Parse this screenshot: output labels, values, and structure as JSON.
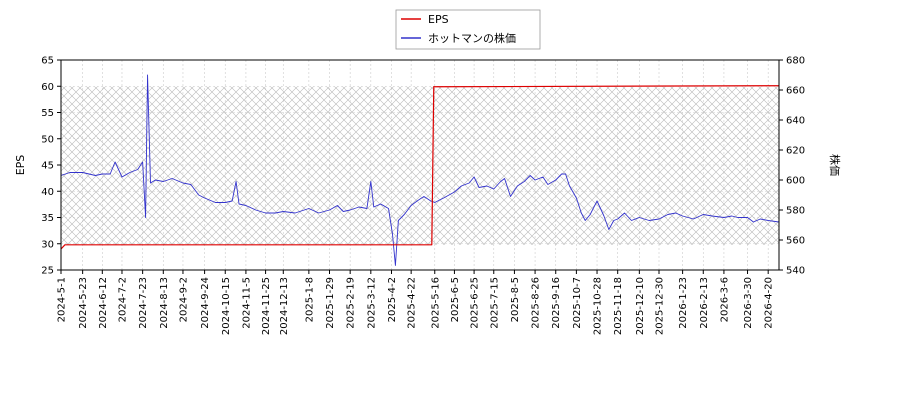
{
  "chart_data": {
    "type": "line",
    "title": "",
    "legend": {
      "position": "top-center",
      "entries": [
        {
          "name": "EPS",
          "color": "#dd0000"
        },
        {
          "name": "ホットマンの株価",
          "color": "#3333cc"
        }
      ]
    },
    "left_axis": {
      "label": "EPS",
      "ylim": [
        25,
        65
      ],
      "ticks": [
        "25",
        "30",
        "35",
        "40",
        "45",
        "50",
        "55",
        "60",
        "65"
      ]
    },
    "right_axis": {
      "label": "株価",
      "ylim": [
        540,
        680
      ],
      "ticks": [
        "540",
        "560",
        "580",
        "600",
        "620",
        "640",
        "660",
        "680"
      ]
    },
    "x_axis": {
      "xlim": [
        "2024-05-01",
        "2026-05-01"
      ],
      "tick_labels": [
        "2024-5-1",
        "2024-5-23",
        "2024-6-12",
        "2024-7-2",
        "2024-7-23",
        "2024-8-13",
        "2024-9-2",
        "2024-9-24",
        "2024-10-15",
        "2024-11-5",
        "2024-11-25",
        "2024-12-13",
        "2025-1-8",
        "2025-1-29",
        "2025-2-19",
        "2025-3-12",
        "2025-4-2",
        "2025-4-22",
        "2025-5-16",
        "2025-6-5",
        "2025-6-25",
        "2025-7-15",
        "2025-8-5",
        "2025-8-26",
        "2025-9-16",
        "2025-10-7",
        "2025-10-28",
        "2025-11-18",
        "2025-12-10",
        "2025-12-30",
        "2026-1-23",
        "2026-2-13",
        "2026-3-6",
        "2026-3-30",
        "2026-4-20"
      ]
    },
    "hatch_region": {
      "x": [
        "2024-05-01",
        "2026-05-01"
      ],
      "y": [
        29.8,
        59.9
      ]
    },
    "series": [
      {
        "name": "EPS",
        "axis": "left",
        "color": "#dd0000",
        "points": [
          [
            "2024-05-01",
            29.0
          ],
          [
            "2024-05-05",
            29.8
          ],
          [
            "2025-05-13",
            29.8
          ],
          [
            "2025-05-15",
            59.9
          ],
          [
            "2026-05-01",
            60.1
          ]
        ]
      },
      {
        "name": "ホットマンの株価",
        "axis": "right",
        "color": "#3333cc",
        "points": [
          [
            "2024-05-01",
            603
          ],
          [
            "2024-05-10",
            605
          ],
          [
            "2024-05-23",
            605
          ],
          [
            "2024-06-05",
            603
          ],
          [
            "2024-06-12",
            604
          ],
          [
            "2024-06-20",
            604
          ],
          [
            "2024-06-25",
            612
          ],
          [
            "2024-07-02",
            602
          ],
          [
            "2024-07-10",
            605
          ],
          [
            "2024-07-18",
            607
          ],
          [
            "2024-07-23",
            612
          ],
          [
            "2024-07-26",
            575
          ],
          [
            "2024-07-28",
            670
          ],
          [
            "2024-07-31",
            598
          ],
          [
            "2024-08-05",
            600
          ],
          [
            "2024-08-13",
            599
          ],
          [
            "2024-08-22",
            601
          ],
          [
            "2024-09-02",
            598
          ],
          [
            "2024-09-10",
            597
          ],
          [
            "2024-09-18",
            590
          ],
          [
            "2024-09-24",
            588
          ],
          [
            "2024-10-05",
            585
          ],
          [
            "2024-10-15",
            585
          ],
          [
            "2024-10-22",
            586
          ],
          [
            "2024-10-26",
            599
          ],
          [
            "2024-10-29",
            584
          ],
          [
            "2024-11-05",
            583
          ],
          [
            "2024-11-15",
            580
          ],
          [
            "2024-11-25",
            578
          ],
          [
            "2024-12-05",
            578
          ],
          [
            "2024-12-13",
            579
          ],
          [
            "2024-12-25",
            578
          ],
          [
            "2025-01-08",
            581
          ],
          [
            "2025-01-18",
            578
          ],
          [
            "2025-01-29",
            580
          ],
          [
            "2025-02-06",
            583
          ],
          [
            "2025-02-12",
            579
          ],
          [
            "2025-02-19",
            580
          ],
          [
            "2025-02-28",
            582
          ],
          [
            "2025-03-08",
            581
          ],
          [
            "2025-03-12",
            599
          ],
          [
            "2025-03-15",
            582
          ],
          [
            "2025-03-22",
            584
          ],
          [
            "2025-03-30",
            581
          ],
          [
            "2025-04-03",
            564
          ],
          [
            "2025-04-06",
            543
          ],
          [
            "2025-04-09",
            573
          ],
          [
            "2025-04-15",
            577
          ],
          [
            "2025-04-22",
            583
          ],
          [
            "2025-04-28",
            586
          ],
          [
            "2025-05-05",
            589
          ],
          [
            "2025-05-12",
            586
          ],
          [
            "2025-05-16",
            585
          ],
          [
            "2025-05-25",
            588
          ],
          [
            "2025-06-05",
            592
          ],
          [
            "2025-06-12",
            596
          ],
          [
            "2025-06-20",
            598
          ],
          [
            "2025-06-25",
            602
          ],
          [
            "2025-06-30",
            595
          ],
          [
            "2025-07-08",
            596
          ],
          [
            "2025-07-15",
            594
          ],
          [
            "2025-07-22",
            599
          ],
          [
            "2025-07-26",
            601
          ],
          [
            "2025-08-01",
            589
          ],
          [
            "2025-08-08",
            596
          ],
          [
            "2025-08-15",
            599
          ],
          [
            "2025-08-21",
            603
          ],
          [
            "2025-08-26",
            600
          ],
          [
            "2025-09-03",
            602
          ],
          [
            "2025-09-08",
            597
          ],
          [
            "2025-09-16",
            600
          ],
          [
            "2025-09-22",
            604
          ],
          [
            "2025-09-26",
            604
          ],
          [
            "2025-09-30",
            596
          ],
          [
            "2025-10-07",
            588
          ],
          [
            "2025-10-12",
            578
          ],
          [
            "2025-10-16",
            573
          ],
          [
            "2025-10-21",
            577
          ],
          [
            "2025-10-28",
            586
          ],
          [
            "2025-11-04",
            576
          ],
          [
            "2025-11-09",
            567
          ],
          [
            "2025-11-14",
            573
          ],
          [
            "2025-11-18",
            574
          ],
          [
            "2025-11-25",
            578
          ],
          [
            "2025-12-02",
            573
          ],
          [
            "2025-12-10",
            575
          ],
          [
            "2025-12-20",
            573
          ],
          [
            "2025-12-30",
            574
          ],
          [
            "2026-01-08",
            577
          ],
          [
            "2026-01-16",
            578
          ],
          [
            "2026-01-23",
            576
          ],
          [
            "2026-02-03",
            574
          ],
          [
            "2026-02-13",
            577
          ],
          [
            "2026-02-22",
            576
          ],
          [
            "2026-03-06",
            575
          ],
          [
            "2026-03-14",
            576
          ],
          [
            "2026-03-20",
            575
          ],
          [
            "2026-03-30",
            575
          ],
          [
            "2026-04-05",
            572
          ],
          [
            "2026-04-12",
            574
          ],
          [
            "2026-04-20",
            573
          ],
          [
            "2026-05-01",
            572
          ]
        ]
      }
    ]
  }
}
